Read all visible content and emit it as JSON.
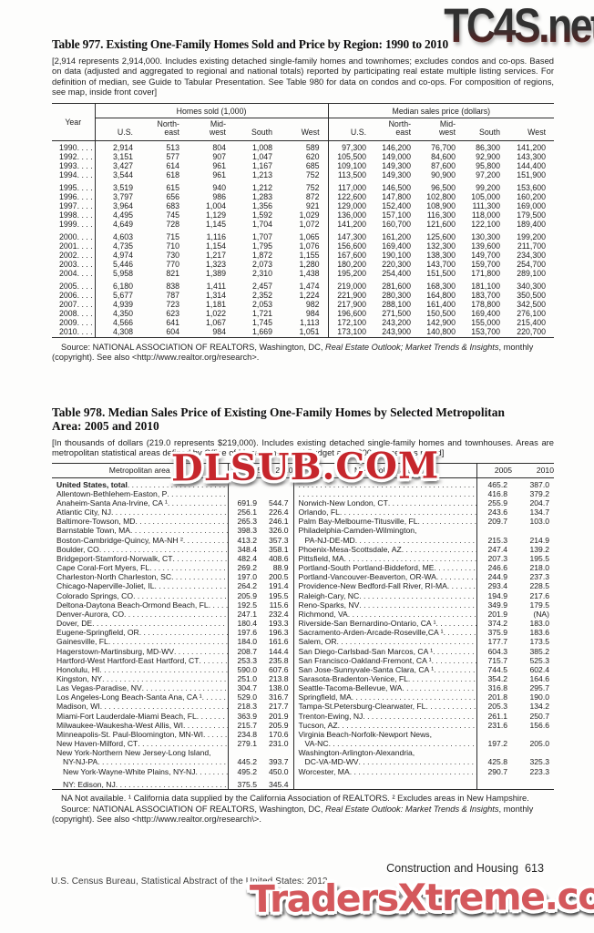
{
  "watermarks": {
    "top_right": "TC4S.net",
    "middle": "DLSUB.COM",
    "bottom": "TradersXtreme.com",
    "middle_color": "#c6262c",
    "bottom_color": "#d4585c",
    "top_colors": [
      "#2d2d2d",
      "#95463c"
    ]
  },
  "table977": {
    "title": "Table 977. Existing One-Family Homes Sold and Price by Region: 1990 to 2010",
    "intro": "[2,914 represents 2,914,000. Includes existing detached single-family homes and townhomes; excludes condos and co-ops. Based on data (adjusted and aggregated to regional and national totals) reported by participating real estate multiple listing services. For definition of median, see Guide to Tabular Presentation. See Table 980 for data on condos and co-ops. For composition of regions, see map, inside front cover]",
    "year_header": "Year",
    "group_headers": [
      "Homes sold (1,000)",
      "Median sales price (dollars)"
    ],
    "col_headers": [
      "U.S.",
      "North-\neast",
      "Mid-\nwest",
      "South",
      "West",
      "U.S.",
      "North-\neast",
      "Mid-\nwest",
      "South",
      "West"
    ],
    "rows": [
      {
        "year": "1990",
        "values": [
          "2,914",
          "513",
          "804",
          "1,008",
          "589",
          "97,300",
          "146,200",
          "76,700",
          "86,300",
          "141,200"
        ]
      },
      {
        "year": "1992",
        "values": [
          "3,151",
          "577",
          "907",
          "1,047",
          "620",
          "105,500",
          "149,000",
          "84,600",
          "92,900",
          "143,300"
        ]
      },
      {
        "year": "1993",
        "values": [
          "3,427",
          "614",
          "961",
          "1,167",
          "685",
          "109,100",
          "149,300",
          "87,600",
          "95,800",
          "144,400"
        ]
      },
      {
        "year": "1994",
        "values": [
          "3,544",
          "618",
          "961",
          "1,213",
          "752",
          "113,500",
          "149,300",
          "90,900",
          "97,200",
          "151,900"
        ]
      },
      {
        "year": "1995",
        "gap": true,
        "values": [
          "3,519",
          "615",
          "940",
          "1,212",
          "752",
          "117,000",
          "146,500",
          "96,500",
          "99,200",
          "153,600"
        ]
      },
      {
        "year": "1996",
        "values": [
          "3,797",
          "656",
          "986",
          "1,283",
          "872",
          "122,600",
          "147,800",
          "102,800",
          "105,000",
          "160,200"
        ]
      },
      {
        "year": "1997",
        "values": [
          "3,964",
          "683",
          "1,004",
          "1,356",
          "921",
          "129,000",
          "152,400",
          "108,900",
          "111,300",
          "169,000"
        ]
      },
      {
        "year": "1998",
        "values": [
          "4,495",
          "745",
          "1,129",
          "1,592",
          "1,029",
          "136,000",
          "157,100",
          "116,300",
          "118,000",
          "179,500"
        ]
      },
      {
        "year": "1999",
        "values": [
          "4,649",
          "728",
          "1,145",
          "1,704",
          "1,072",
          "141,200",
          "160,700",
          "121,600",
          "122,100",
          "189,400"
        ]
      },
      {
        "year": "2000",
        "gap": true,
        "values": [
          "4,603",
          "715",
          "1,116",
          "1,707",
          "1,065",
          "147,300",
          "161,200",
          "125,600",
          "130,300",
          "199,200"
        ]
      },
      {
        "year": "2001",
        "values": [
          "4,735",
          "710",
          "1,154",
          "1,795",
          "1,076",
          "156,600",
          "169,400",
          "132,300",
          "139,600",
          "211,700"
        ]
      },
      {
        "year": "2002",
        "values": [
          "4,974",
          "730",
          "1,217",
          "1,872",
          "1,155",
          "167,600",
          "190,100",
          "138,300",
          "149,700",
          "234,300"
        ]
      },
      {
        "year": "2003",
        "values": [
          "5,446",
          "770",
          "1,323",
          "2,073",
          "1,280",
          "180,200",
          "220,300",
          "143,700",
          "159,700",
          "254,700"
        ]
      },
      {
        "year": "2004",
        "values": [
          "5,958",
          "821",
          "1,389",
          "2,310",
          "1,438",
          "195,200",
          "254,400",
          "151,500",
          "171,800",
          "289,100"
        ]
      },
      {
        "year": "2005",
        "gap": true,
        "values": [
          "6,180",
          "838",
          "1,411",
          "2,457",
          "1,474",
          "219,000",
          "281,600",
          "168,300",
          "181,100",
          "340,300"
        ]
      },
      {
        "year": "2006",
        "values": [
          "5,677",
          "787",
          "1,314",
          "2,352",
          "1,224",
          "221,900",
          "280,300",
          "164,800",
          "183,700",
          "350,500"
        ]
      },
      {
        "year": "2007",
        "values": [
          "4,939",
          "723",
          "1,181",
          "2,053",
          "982",
          "217,900",
          "288,100",
          "161,400",
          "178,800",
          "342,500"
        ]
      },
      {
        "year": "2008",
        "values": [
          "4,350",
          "623",
          "1,022",
          "1,721",
          "984",
          "196,600",
          "271,500",
          "150,500",
          "169,400",
          "276,100"
        ]
      },
      {
        "year": "2009",
        "values": [
          "4,566",
          "641",
          "1,067",
          "1,745",
          "1,113",
          "172,100",
          "243,200",
          "142,900",
          "155,000",
          "215,400"
        ]
      },
      {
        "year": "2010",
        "values": [
          "4,308",
          "604",
          "984",
          "1,669",
          "1,051",
          "173,100",
          "243,900",
          "140,800",
          "153,700",
          "220,700"
        ]
      }
    ],
    "source": {
      "prefix": "Source: NATIONAL ASSOCIATION OF REALTORS, Washington, DC, ",
      "italic": "Real Estate Outlook; Market Trends & Insights",
      "suffix": ", monthly (copyright). See also <http://www.realtor.org/research>."
    }
  },
  "table978": {
    "title": "Table 978. Median Sales Price of Existing One-Family Homes by Selected Metropolitan Area: 2005 and 2010",
    "intro": "[In thousands of dollars (219.0 represents $219,000). Includes existing detached single-family homes and townhouses. Areas are metropolitan statistical areas defined by Office of Management and Budget as of 2004, except as noted]",
    "col_headers": [
      "Metropolitan area",
      "2005",
      "2010",
      "Metropolitan area",
      "2005",
      "2010"
    ],
    "rows": [
      {
        "l": "United States, total",
        "lb": true,
        "l05": "",
        "l10": "",
        "r": "",
        "r05": "465.2",
        "r10": "387.0"
      },
      {
        "l": "Allentown-Bethlehem-Easton, P",
        "l05": "",
        "l10": "",
        "r": "",
        "r05": "416.8",
        "r10": "379.2"
      },
      {
        "l": "Anaheim-Santa Ana-Irvine, CA ¹",
        "l05": "691.9",
        "l10": "544.7",
        "r": "Norwich-New London, CT",
        "r05": "255.9",
        "r10": "204.7"
      },
      {
        "l": "Atlantic City, NJ",
        "l05": "256.1",
        "l10": "226.4",
        "r": "Orlando, FL",
        "r05": "243.6",
        "r10": "134.7"
      },
      {
        "l": "Baltimore-Towson, MD",
        "l05": "265.3",
        "l10": "246.1",
        "r": "Palm Bay-Melbourne-Titusville, FL",
        "r05": "209.7",
        "r10": "103.0"
      },
      {
        "l": "Barnstable Town, MA",
        "l05": "398.3",
        "l10": "326.0",
        "r": "Philadelphia-Camden-Wilmington,",
        "rc": true
      },
      {
        "l": "Boston-Cambridge-Quincy, MA-NH ²",
        "l05": "413.2",
        "l10": "357.3",
        "r": "PA-NJ-DE-MD",
        "ri": true,
        "r05": "215.3",
        "r10": "214.9"
      },
      {
        "l": "Boulder, CO",
        "l05": "348.4",
        "l10": "358.1",
        "r": "Phoenix-Mesa-Scottsdale, AZ",
        "r05": "247.4",
        "r10": "139.2"
      },
      {
        "l": "Bridgeport-Stamford-Norwalk, CT",
        "l05": "482.4",
        "l10": "408.6",
        "r": "Pittsfield, MA",
        "r05": "207.3",
        "r10": "195.5"
      },
      {
        "l": "Cape Coral-Fort Myers, FL",
        "l05": "269.2",
        "l10": "88.9",
        "r": "Portland-South Portland-Biddeford, ME",
        "r05": "246.6",
        "r10": "218.0"
      },
      {
        "l": "Charleston-North Charleston, SC",
        "l05": "197.0",
        "l10": "200.5",
        "r": "Portland-Vancouver-Beaverton, OR-WA",
        "r05": "244.9",
        "r10": "237.3"
      },
      {
        "l": "Chicago-Naperville-Joliet, IL",
        "l05": "264.2",
        "l10": "191.4",
        "r": "Providence-New Bedford-Fall River, RI-MA",
        "r05": "293.4",
        "r10": "228.5"
      },
      {
        "l": "Colorado Springs, CO",
        "l05": "205.9",
        "l10": "195.5",
        "r": "Raleigh-Cary, NC",
        "r05": "194.9",
        "r10": "217.6"
      },
      {
        "l": "Deltona-Daytona Beach-Ormond Beach, FL",
        "l05": "192.5",
        "l10": "115.6",
        "r": "Reno-Sparks, NV",
        "r05": "349.9",
        "r10": "179.5"
      },
      {
        "l": "Denver-Aurora, CO",
        "l05": "247.1",
        "l10": "232.4",
        "r": "Richmond, VA",
        "r05": "201.9",
        "r10": "(NA)"
      },
      {
        "l": "Dover, DE",
        "l05": "180.4",
        "l10": "193.3",
        "r": "Riverside-San Bernardino-Ontario, CA ¹",
        "r05": "374.2",
        "r10": "183.0"
      },
      {
        "l": "Eugene-Springfield, OR",
        "l05": "197.6",
        "l10": "196.3",
        "r": "Sacramento-Arden-Arcade-Roseville,CA ¹",
        "r05": "375.9",
        "r10": "183.6"
      },
      {
        "l": "Gainesville, FL",
        "l05": "184.0",
        "l10": "161.6",
        "r": "Salem, OR",
        "r05": "177.7",
        "r10": "173.5"
      },
      {
        "l": "Hagerstown-Martinsburg, MD-WV",
        "l05": "208.7",
        "l10": "144.4",
        "r": "San Diego-Carlsbad-San Marcos, CA ¹",
        "r05": "604.3",
        "r10": "385.2"
      },
      {
        "l": "Hartford-West Hartford-East Hartford, CT",
        "l05": "253.3",
        "l10": "235.8",
        "r": "San Francisco-Oakland-Fremont, CA ¹",
        "r05": "715.7",
        "r10": "525.3"
      },
      {
        "l": "Honolulu, HI",
        "l05": "590.0",
        "l10": "607.6",
        "r": "San Jose-Sunnyvale-Santa Clara, CA ¹",
        "r05": "744.5",
        "r10": "602.4"
      },
      {
        "l": "Kingston, NY",
        "l05": "251.0",
        "l10": "213.8",
        "r": "Sarasota-Bradenton-Venice, FL",
        "r05": "354.2",
        "r10": "164.6"
      },
      {
        "l": "Las Vegas-Paradise, NV",
        "l05": "304.7",
        "l10": "138.0",
        "r": "Seattle-Tacoma-Bellevue, WA",
        "r05": "316.8",
        "r10": "295.7"
      },
      {
        "l": "Los Angeles-Long Beach-Santa Ana, CA ¹",
        "l05": "529.0",
        "l10": "316.7",
        "r": "Springfield, MA",
        "r05": "201.8",
        "r10": "190.0"
      },
      {
        "l": "Madison, WI",
        "l05": "218.3",
        "l10": "217.7",
        "r": "Tampa-St.Petersburg-Clearwater, FL",
        "r05": "205.3",
        "r10": "134.2"
      },
      {
        "l": "Miami-Fort Lauderdale-Miami Beach, FL",
        "l05": "363.9",
        "l10": "201.9",
        "r": "Trenton-Ewing, NJ",
        "r05": "261.1",
        "r10": "250.7"
      },
      {
        "l": "Milwaukee-Waukesha-West Allis, WI",
        "l05": "215.7",
        "l10": "205.9",
        "r": "Tucson, AZ",
        "r05": "231.6",
        "r10": "156.6"
      },
      {
        "l": "Minneapolis-St. Paul-Bloomington, MN-WI",
        "l05": "234.8",
        "l10": "170.6",
        "r": "Virginia Beach-Norfolk-Newport News,",
        "rc": true
      },
      {
        "l": "New Haven-Milford, CT",
        "l05": "279.1",
        "l10": "231.0",
        "r": "VA-NC",
        "ri": true,
        "r05": "197.2",
        "r10": "205.0"
      },
      {
        "l": "New York-Northern New Jersey-Long Island,",
        "lc": true,
        "r": "Washington-Arlington-Alexandria,",
        "rc": true
      },
      {
        "l": "NY-NJ-PA",
        "li": true,
        "l05": "445.2",
        "l10": "393.7",
        "r": "DC-VA-MD-WV",
        "ri": true,
        "r05": "425.8",
        "r10": "325.3"
      },
      {
        "l": "New York-Wayne-White Plains, NY-NJ",
        "li": true,
        "l05": "495.2",
        "l10": "450.0",
        "r": "Worcester, MA",
        "r05": "290.7",
        "r10": "223.3"
      },
      {
        "l": "NY: Edison, NJ",
        "li": true,
        "gap": true,
        "l05": "375.5",
        "l10": "345.4"
      }
    ],
    "footnote": "NA Not available. ¹ California data supplied by the California Association of REALTORS. ² Excludes areas in New Hampshire.",
    "source": {
      "prefix": "Source: NATIONAL ASSOCIATION OF REALTORS, Washington, DC, ",
      "italic": "Real Estate Outlook: Market Trends & Insights",
      "suffix": ", monthly (copyright). See also <http://www.realtor.org/research\\>."
    }
  },
  "footer": {
    "left": "U.S. Census Bureau, Statistical Abstract of the United States: 2012",
    "right": "Construction and Housing  613"
  }
}
